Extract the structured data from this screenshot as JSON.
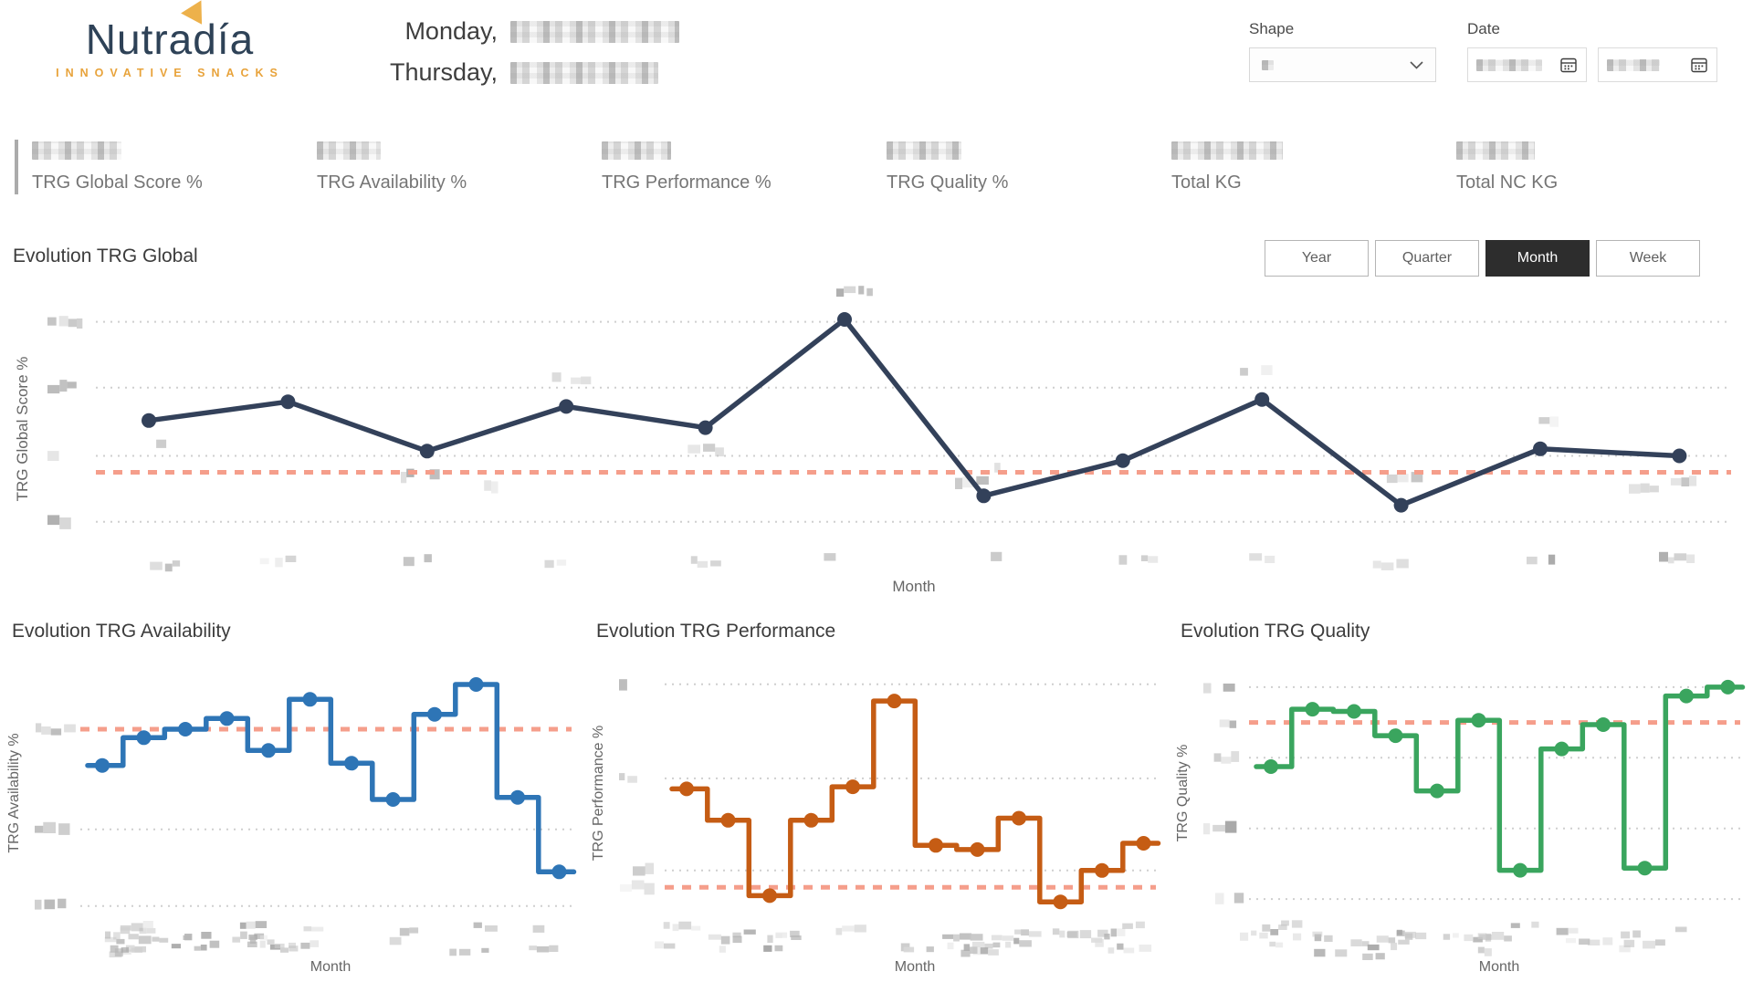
{
  "brand": {
    "name": "Nutradía",
    "tagline": "INNOVATIVE SNACKS",
    "name_color": "#2e4257",
    "accent_color": "#e8a33b"
  },
  "header": {
    "date_line_1_prefix": "Monday,",
    "date_line_2_prefix": "Thursday,",
    "date_values_redacted": true,
    "shape_filter": {
      "label": "Shape",
      "value_redacted": true
    },
    "date_filter": {
      "label": "Date",
      "start_value_redacted": true,
      "end_value_redacted": true
    }
  },
  "kpis": [
    {
      "label": "TRG Global Score %",
      "value_redacted": true,
      "selected": true
    },
    {
      "label": "TRG Availability %",
      "value_redacted": true,
      "selected": false
    },
    {
      "label": "TRG Performance %",
      "value_redacted": true,
      "selected": false
    },
    {
      "label": "TRG Quality %",
      "value_redacted": true,
      "selected": false
    },
    {
      "label": "Total KG",
      "value_redacted": true,
      "selected": false
    },
    {
      "label": "Total NC KG",
      "value_redacted": true,
      "selected": false
    }
  ],
  "period_buttons": [
    {
      "label": "Year",
      "active": false
    },
    {
      "label": "Quarter",
      "active": false
    },
    {
      "label": "Month",
      "active": true
    },
    {
      "label": "Week",
      "active": false
    }
  ],
  "chart_data": [
    {
      "id": "trg_global",
      "type": "line",
      "line_style": "linear",
      "title": "Evolution TRG Global",
      "xlabel": "Month",
      "ylabel": "TRG Global Score %",
      "n_points": 12,
      "x_tick_labels_redacted": true,
      "y_tick_labels_redacted": true,
      "values_note": "y values normalized 0-100, estimated from pixels; axis numbers pixelated in source",
      "values": [
        54,
        62,
        41,
        60,
        51,
        97,
        22,
        37,
        63,
        18,
        42,
        39
      ],
      "reference_line": 32,
      "gridlines": [
        96,
        68,
        39,
        11
      ],
      "ylim": [
        0,
        104
      ],
      "line_color": "#33415a",
      "reference_color": "#f59e8b",
      "markers": true,
      "legend": false
    },
    {
      "id": "trg_availability",
      "type": "line",
      "line_style": "step",
      "title": "Evolution TRG Availability",
      "xlabel": "Month",
      "ylabel": "TRG Availability %",
      "n_points": 12,
      "x_tick_labels_redacted": true,
      "y_tick_labels_redacted": true,
      "values": [
        62,
        75,
        79,
        84,
        69,
        93,
        63,
        46,
        86,
        100,
        47,
        12
      ],
      "reference_line": 79,
      "gridlines": [
        32,
        -4
      ],
      "ylim": [
        -8,
        106
      ],
      "line_color": "#2e75b6",
      "reference_color": "#f59e8b",
      "markers": true,
      "legend": false
    },
    {
      "id": "trg_performance",
      "type": "line",
      "line_style": "step",
      "title": "Evolution TRG Performance",
      "xlabel": "Month",
      "ylabel": "TRG Performance %",
      "n_points": 12,
      "x_tick_labels_redacted": true,
      "y_tick_labels_redacted": true,
      "values": [
        58,
        43,
        7,
        43,
        59,
        100,
        31,
        29,
        44,
        4,
        19,
        32
      ],
      "reference_line": 11,
      "gridlines": [
        108,
        63,
        19
      ],
      "ylim": [
        -2,
        114
      ],
      "line_color": "#c55c14",
      "reference_color": "#f59e8b",
      "markers": true,
      "legend": false
    },
    {
      "id": "trg_quality",
      "type": "line",
      "line_style": "step",
      "title": "Evolution TRG Quality",
      "xlabel": "Month",
      "ylabel": "TRG Quality %",
      "n_points": 12,
      "x_tick_labels_redacted": true,
      "y_tick_labels_redacted": true,
      "values": [
        67,
        93,
        92,
        81,
        56,
        88,
        20,
        75,
        86,
        21,
        99,
        103
      ],
      "reference_line": 87,
      "gridlines": [
        103,
        71,
        39,
        7
      ],
      "ylim": [
        0,
        110
      ],
      "line_color": "#3aa55e",
      "reference_color": "#f59e8b",
      "markers": true,
      "legend": false
    }
  ]
}
